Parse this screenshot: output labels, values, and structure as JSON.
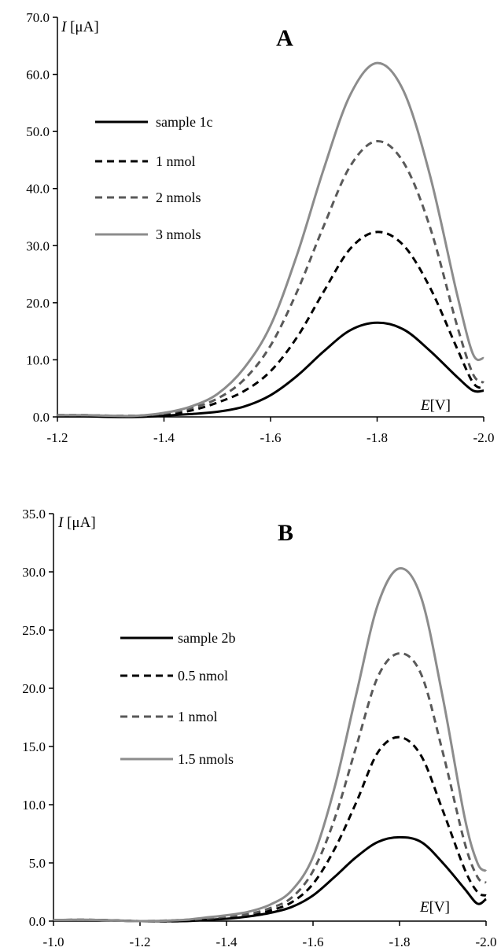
{
  "chart_data": [
    {
      "type": "line",
      "panel_label": "A",
      "ylabel_italic": "I",
      "ylabel_unit": " [μA]",
      "xlabel_italic": "E",
      "xlabel_unit": "[V]",
      "xlim": [
        -1.2,
        -2.0
      ],
      "ylim": [
        0,
        70
      ],
      "xticks": [
        "-1.2",
        "-1.4",
        "-1.6",
        "-1.8",
        "-2.0"
      ],
      "yticks": [
        "0.0",
        "10.0",
        "20.0",
        "30.0",
        "40.0",
        "50.0",
        "60.0",
        "70.0"
      ],
      "legend_position": "upper-left",
      "x": [
        -1.2,
        -1.25,
        -1.3,
        -1.35,
        -1.4,
        -1.45,
        -1.5,
        -1.55,
        -1.6,
        -1.65,
        -1.7,
        -1.75,
        -1.8,
        -1.85,
        -1.9,
        -1.95,
        -1.98,
        -2.0
      ],
      "series": [
        {
          "name": "sample 1c",
          "color": "#000000",
          "dash": "solid",
          "values": [
            0.1,
            0.1,
            0.0,
            0.0,
            0.2,
            0.5,
            0.9,
            1.8,
            3.8,
            7.2,
            11.5,
            15.2,
            16.5,
            15.3,
            11.5,
            7.0,
            4.6,
            4.6
          ]
        },
        {
          "name": "1 nmol",
          "color": "#000000",
          "dash": "dashed",
          "values": [
            0.3,
            0.3,
            0.2,
            0.2,
            0.4,
            1.1,
            2.5,
            4.5,
            8.0,
            14.0,
            22.0,
            29.5,
            32.4,
            30.0,
            22.5,
            12.0,
            6.0,
            5.0
          ]
        },
        {
          "name": "2 nmols",
          "color": "#595959",
          "dash": "dashed",
          "values": [
            0.3,
            0.3,
            0.2,
            0.2,
            0.6,
            1.5,
            3.2,
            6.5,
            12.5,
            22.0,
            33.5,
            44.0,
            48.3,
            44.5,
            33.0,
            16.0,
            7.5,
            6.0
          ]
        },
        {
          "name": "3 nmols",
          "color": "#8c8c8c",
          "dash": "solid",
          "values": [
            0.3,
            0.3,
            0.2,
            0.2,
            0.7,
            1.8,
            4.0,
            8.5,
            16.0,
            28.5,
            43.5,
            56.5,
            62.0,
            57.0,
            42.0,
            21.5,
            11.0,
            10.3
          ]
        }
      ]
    },
    {
      "type": "line",
      "panel_label": "B",
      "ylabel_italic": "I",
      "ylabel_unit": " [μA]",
      "xlabel_italic": "E",
      "xlabel_unit": "[V]",
      "xlim": [
        -1.0,
        -2.0
      ],
      "ylim": [
        0,
        35
      ],
      "xticks": [
        "-1.0",
        "-1.2",
        "-1.4",
        "-1.6",
        "-1.8",
        "-2.0"
      ],
      "yticks": [
        "0.0",
        "5.0",
        "10.0",
        "15.0",
        "20.0",
        "25.0",
        "30.0",
        "35.0"
      ],
      "legend_position": "middle-left",
      "x": [
        -1.0,
        -1.1,
        -1.2,
        -1.3,
        -1.35,
        -1.4,
        -1.45,
        -1.5,
        -1.55,
        -1.6,
        -1.65,
        -1.7,
        -1.75,
        -1.8,
        -1.85,
        -1.9,
        -1.95,
        -1.98,
        -2.0
      ],
      "series": [
        {
          "name": "sample 2b",
          "color": "#000000",
          "dash": "solid",
          "values": [
            0.1,
            0.1,
            0.0,
            0.0,
            0.1,
            0.2,
            0.4,
            0.7,
            1.2,
            2.2,
            3.8,
            5.5,
            6.8,
            7.2,
            6.8,
            5.0,
            2.8,
            1.5,
            1.9
          ]
        },
        {
          "name": "0.5 nmol",
          "color": "#000000",
          "dash": "dashed",
          "values": [
            0.1,
            0.1,
            0.0,
            0.0,
            0.2,
            0.3,
            0.5,
            0.9,
            1.6,
            3.2,
            6.2,
            10.2,
            14.5,
            15.8,
            14.2,
            9.5,
            4.5,
            2.5,
            2.2
          ]
        },
        {
          "name": "1 nmol",
          "color": "#595959",
          "dash": "dashed",
          "values": [
            0.1,
            0.1,
            0.0,
            0.1,
            0.2,
            0.4,
            0.6,
            1.1,
            2.0,
            4.3,
            8.8,
            15.0,
            21.0,
            23.0,
            21.2,
            14.5,
            6.8,
            3.8,
            3.3
          ]
        },
        {
          "name": "1.5 nmols",
          "color": "#8c8c8c",
          "dash": "solid",
          "values": [
            0.1,
            0.1,
            0.0,
            0.1,
            0.3,
            0.5,
            0.8,
            1.4,
            2.6,
            5.5,
            11.5,
            19.5,
            27.2,
            30.3,
            27.8,
            19.2,
            9.0,
            5.0,
            4.3
          ]
        }
      ]
    }
  ]
}
